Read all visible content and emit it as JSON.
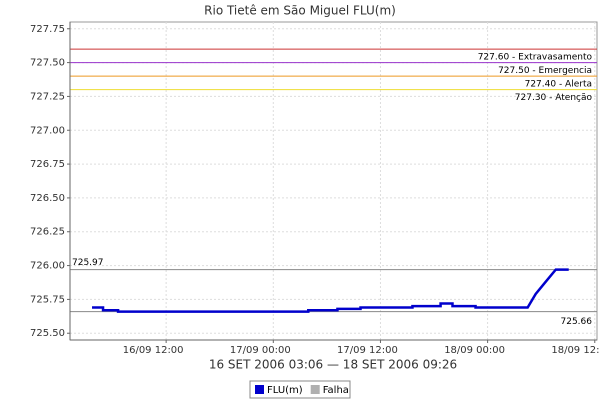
{
  "chart_data": {
    "type": "line",
    "title": "Rio Tietê em São Miguel FLU(m)",
    "x_label": "16 SET 2006 03:06 — 18 SET 2006 09:26",
    "x": [
      "2006-09-16T03:42",
      "2006-09-16T04:56",
      "2006-09-16T04:56",
      "2006-09-16T06:37",
      "2006-09-16T06:37",
      "2006-09-17T03:55",
      "2006-09-17T03:55",
      "2006-09-17T07:11",
      "2006-09-17T07:11",
      "2006-09-17T09:46",
      "2006-09-17T09:46",
      "2006-09-17T15:35",
      "2006-09-17T15:35",
      "2006-09-17T18:44",
      "2006-09-17T18:44",
      "2006-09-17T20:04",
      "2006-09-17T20:04",
      "2006-09-17T22:39",
      "2006-09-17T22:39",
      "2006-09-18T04:29",
      "2006-09-18T05:23",
      "2006-09-18T06:30",
      "2006-09-18T07:38",
      "2006-09-18T09:05"
    ],
    "series": [
      {
        "name": "FLU(m)",
        "color": "#0000cc",
        "values": [
          725.69,
          725.69,
          725.67,
          725.67,
          725.66,
          725.66,
          725.67,
          725.67,
          725.68,
          725.68,
          725.69,
          725.69,
          725.7,
          725.7,
          725.72,
          725.72,
          725.7,
          725.7,
          725.69,
          725.69,
          725.79,
          725.88,
          725.97,
          725.97
        ]
      },
      {
        "name": "Falha",
        "color": "#b0b0b0",
        "values": [
          null,
          null,
          null,
          null,
          null,
          null,
          null,
          null,
          null,
          null,
          null,
          null,
          null,
          null,
          null,
          null,
          null,
          null,
          null,
          null,
          null,
          null,
          null,
          null
        ]
      }
    ],
    "xlim": [
      "2006-09-16T01:14",
      "2006-09-18T12:15"
    ],
    "xticks": [
      {
        "value": "2006-09-16T12:00",
        "label": "16/09 12:00"
      },
      {
        "value": "2006-09-17T00:00",
        "label": "17/09 00:00"
      },
      {
        "value": "2006-09-17T12:00",
        "label": "17/09 12:00"
      },
      {
        "value": "2006-09-18T00:00",
        "label": "18/09 00:00"
      },
      {
        "value": "2006-09-18T12:00",
        "label": "18/09 12:00"
      }
    ],
    "ylim": [
      725.45,
      727.8
    ],
    "yticks": [
      {
        "value": 725.5,
        "label": "725.50"
      },
      {
        "value": 725.75,
        "label": "725.75"
      },
      {
        "value": 726,
        "label": "726.00"
      },
      {
        "value": 726.25,
        "label": "726.25"
      },
      {
        "value": 726.5,
        "label": "726.50"
      },
      {
        "value": 726.75,
        "label": "726.75"
      },
      {
        "value": 727,
        "label": "727.00"
      },
      {
        "value": 727.25,
        "label": "727.25"
      },
      {
        "value": 727.5,
        "label": "727.50"
      },
      {
        "value": 727.75,
        "label": "727.75"
      }
    ],
    "grid": true,
    "thresholds": [
      {
        "value": 727.6,
        "label": "727.60 - Extravasamento",
        "color": "#cc3333"
      },
      {
        "value": 727.5,
        "label": "727.50 - Emergencia",
        "color": "#9933cc"
      },
      {
        "value": 727.4,
        "label": "727.40 - Alerta",
        "color": "#ee9922"
      },
      {
        "value": 727.3,
        "label": "727.30 - Atenção",
        "color": "#eedd33"
      }
    ],
    "references": [
      {
        "value": 725.97,
        "label": "725.97",
        "side": "left"
      },
      {
        "value": 725.66,
        "label": "725.66",
        "side": "right"
      }
    ]
  }
}
